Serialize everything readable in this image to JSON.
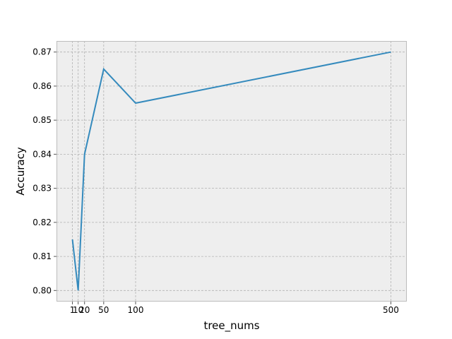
{
  "chart_data": {
    "type": "line",
    "title": "",
    "xlabel": "tree_nums",
    "ylabel": "Accuracy",
    "x": [
      1,
      10,
      20,
      50,
      100,
      500
    ],
    "x_tick_labels": [
      "1",
      "10",
      "20",
      "50",
      "100",
      "500"
    ],
    "y_ticks": [
      0.8,
      0.81,
      0.82,
      0.83,
      0.84,
      0.85,
      0.86,
      0.87
    ],
    "y_tick_labels": [
      "0.80",
      "0.81",
      "0.82",
      "0.83",
      "0.84",
      "0.85",
      "0.86",
      "0.87"
    ],
    "series": [
      {
        "values": [
          0.815,
          0.8,
          0.84,
          0.865,
          0.855,
          0.87
        ]
      }
    ],
    "xlim": [
      -23.95,
      524.95
    ],
    "ylim": [
      0.79675,
      0.87325
    ],
    "grid": true,
    "legend": "none",
    "colors": {
      "line": "#348ABD",
      "plot_background": "#EEEEEE",
      "grid": "#B2B2B2",
      "frame": "#BCBCBC"
    }
  }
}
